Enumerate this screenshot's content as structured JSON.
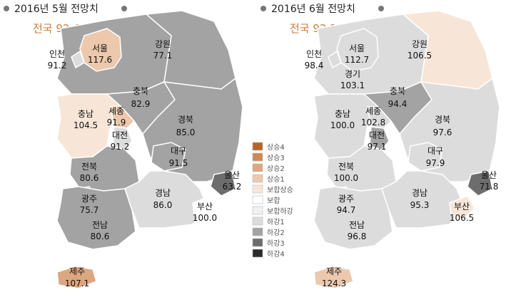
{
  "maps": [
    {
      "title": "2016년 5월 전망치",
      "national_label": "전국 92.4",
      "regions": {
        "gangwon": {
          "name": "강원",
          "value": "77.1",
          "category": "하강2"
        },
        "gyeonggi": {
          "name": "",
          "value": "",
          "category": "하강2"
        },
        "seoul": {
          "name": "서울",
          "value": "117.6",
          "category": "상승1"
        },
        "incheon": {
          "name": "인천",
          "value": "91.2",
          "category": "하강1"
        },
        "chungbuk": {
          "name": "충북",
          "value": "82.9",
          "category": "하강2"
        },
        "chungnam": {
          "name": "충남",
          "value": "104.5",
          "category": "보합상승"
        },
        "sejong": {
          "name": "세종",
          "value": "91.9",
          "category": "상승1"
        },
        "daejeon": {
          "name": "대전",
          "value": "91.2",
          "category": "하강1"
        },
        "gyeongbuk": {
          "name": "경북",
          "value": "85.0",
          "category": "하강2"
        },
        "daegu": {
          "name": "대구",
          "value": "91.5",
          "category": "하강2"
        },
        "ulsan": {
          "name": "울산",
          "value": "63.2",
          "category": "하강3"
        },
        "jeonbuk": {
          "name": "전북",
          "value": "80.6",
          "category": "하강2"
        },
        "gwangju": {
          "name": "광주",
          "value": "75.7",
          "category": "하강2"
        },
        "jeonnam": {
          "name": "전남",
          "value": "80.6",
          "category": "하강2"
        },
        "gyeongnam": {
          "name": "경남",
          "value": "86.0",
          "category": "하강1"
        },
        "busan": {
          "name": "부산",
          "value": "100.0",
          "category": "보합"
        },
        "jeju": {
          "name": "제주",
          "value": "107.1",
          "category": "상승2"
        }
      }
    },
    {
      "title": "2016년 6월 전망치",
      "national_label": "전국 92.2",
      "regions": {
        "gangwon": {
          "name": "강원",
          "value": "106.5",
          "category": "보합상승"
        },
        "gyeonggi": {
          "name": "경기",
          "value": "103.1",
          "category": "하강1"
        },
        "seoul": {
          "name": "서울",
          "value": "112.7",
          "category": "하강1"
        },
        "incheon": {
          "name": "인천",
          "value": "98.4",
          "category": "하강1"
        },
        "chungbuk": {
          "name": "충북",
          "value": "94.4",
          "category": "하강2"
        },
        "chungnam": {
          "name": "충남",
          "value": "100.0",
          "category": "하강1"
        },
        "sejong": {
          "name": "세종",
          "value": "102.8",
          "category": "하강1"
        },
        "daejeon": {
          "name": "대전",
          "value": "97.1",
          "category": "하강2"
        },
        "gyeongbuk": {
          "name": "경북",
          "value": "97.6",
          "category": "하강1"
        },
        "daegu": {
          "name": "대구",
          "value": "97.9",
          "category": "하강1"
        },
        "ulsan": {
          "name": "울산",
          "value": "71.8",
          "category": "하강3"
        },
        "jeonbuk": {
          "name": "전북",
          "value": "100.0",
          "category": "하강1"
        },
        "gwangju": {
          "name": "광주",
          "value": "94.7",
          "category": "하강1"
        },
        "jeonnam": {
          "name": "전남",
          "value": "96.8",
          "category": "하강1"
        },
        "gyeongnam": {
          "name": "경남",
          "value": "95.3",
          "category": "하강1"
        },
        "busan": {
          "name": "부산",
          "value": "106.5",
          "category": "보합상승"
        },
        "jeju": {
          "name": "제주",
          "value": "124.3",
          "category": "상승1"
        }
      }
    }
  ],
  "legend": [
    {
      "label": "상승4",
      "color": "#b5652a"
    },
    {
      "label": "상승3",
      "color": "#cd8a55"
    },
    {
      "label": "상승2",
      "color": "#dca780"
    },
    {
      "label": "상승1",
      "color": "#ecc9ad"
    },
    {
      "label": "보합상승",
      "color": "#f7e6d8"
    },
    {
      "label": "보합",
      "color": "#ffffff"
    },
    {
      "label": "보합하강",
      "color": "#f0f0f0"
    },
    {
      "label": "하강1",
      "color": "#dcdcdc"
    },
    {
      "label": "하강2",
      "color": "#a3a3a3"
    },
    {
      "label": "하강3",
      "color": "#6d6d6d"
    },
    {
      "label": "하강4",
      "color": "#2b2b2b"
    }
  ]
}
